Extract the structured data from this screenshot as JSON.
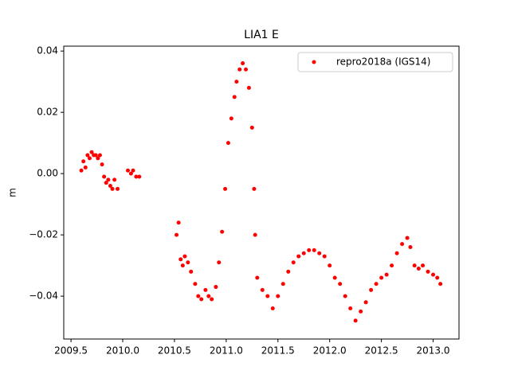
{
  "chart_data": {
    "type": "scatter",
    "title": "LIA1 E",
    "y_label": "m",
    "xlim": [
      2009.43,
      2013.25
    ],
    "ylim": [
      -0.054,
      0.0416
    ],
    "xticks": [
      2009.5,
      {
        "value": 2010.0,
        "label": "2010.0"
      },
      2010.5,
      {
        "value": 2011.0,
        "label": "2011.0"
      },
      2011.5,
      {
        "value": 2012.0,
        "label": "2012.0"
      },
      2012.5,
      {
        "value": 2013.0,
        "label": "2013.0"
      }
    ],
    "yticks": [
      {
        "value": -0.04,
        "label": "−0.04"
      },
      {
        "value": -0.02,
        "label": "−0.02"
      },
      {
        "value": 0,
        "label": "0.00"
      },
      0.02,
      0.04
    ],
    "legend_position": "upper right",
    "series": [
      {
        "name": "repro2018a (IGS14)",
        "color": "#ff0000",
        "x": [
          2009.6,
          2009.62,
          2009.64,
          2009.66,
          2009.68,
          2009.7,
          2009.72,
          2009.74,
          2009.76,
          2009.78,
          2009.8,
          2009.82,
          2009.84,
          2009.86,
          2009.88,
          2009.9,
          2009.92,
          2009.95,
          2010.05,
          2010.08,
          2010.1,
          2010.13,
          2010.16,
          2010.52,
          2010.54,
          2010.56,
          2010.58,
          2010.6,
          2010.63,
          2010.66,
          2010.7,
          2010.73,
          2010.76,
          2010.8,
          2010.83,
          2010.86,
          2010.9,
          2010.93,
          2010.96,
          2010.99,
          2011.02,
          2011.05,
          2011.08,
          2011.1,
          2011.13,
          2011.16,
          2011.19,
          2011.22,
          2011.25,
          2011.27,
          2011.28,
          2011.3,
          2011.35,
          2011.4,
          2011.45,
          2011.5,
          2011.55,
          2011.6,
          2011.65,
          2011.7,
          2011.75,
          2011.8,
          2011.85,
          2011.9,
          2011.95,
          2012.0,
          2012.05,
          2012.1,
          2012.15,
          2012.2,
          2012.25,
          2012.3,
          2012.35,
          2012.4,
          2012.45,
          2012.5,
          2012.55,
          2012.6,
          2012.65,
          2012.7,
          2012.75,
          2012.78,
          2012.82,
          2012.86,
          2012.9,
          2012.95,
          2013.0,
          2013.04,
          2013.07
        ],
        "values": [
          0.001,
          0.004,
          0.002,
          0.006,
          0.005,
          0.007,
          0.006,
          0.006,
          0.005,
          0.006,
          0.003,
          -0.001,
          -0.003,
          -0.002,
          -0.004,
          -0.005,
          -0.002,
          -0.005,
          0.001,
          0.0,
          0.001,
          -0.001,
          -0.001,
          -0.02,
          -0.016,
          -0.028,
          -0.03,
          -0.027,
          -0.029,
          -0.032,
          -0.036,
          -0.04,
          -0.041,
          -0.038,
          -0.04,
          -0.041,
          -0.037,
          -0.029,
          -0.019,
          -0.005,
          0.01,
          0.018,
          0.025,
          0.03,
          0.034,
          0.036,
          0.034,
          0.028,
          0.015,
          -0.005,
          -0.02,
          -0.034,
          -0.038,
          -0.04,
          -0.044,
          -0.04,
          -0.036,
          -0.032,
          -0.029,
          -0.027,
          -0.026,
          -0.025,
          -0.025,
          -0.026,
          -0.027,
          -0.03,
          -0.034,
          -0.036,
          -0.04,
          -0.044,
          -0.048,
          -0.045,
          -0.042,
          -0.038,
          -0.036,
          -0.034,
          -0.033,
          -0.03,
          -0.026,
          -0.023,
          -0.021,
          -0.024,
          -0.03,
          -0.031,
          -0.03,
          -0.032,
          -0.033,
          -0.034,
          -0.036
        ]
      }
    ]
  }
}
